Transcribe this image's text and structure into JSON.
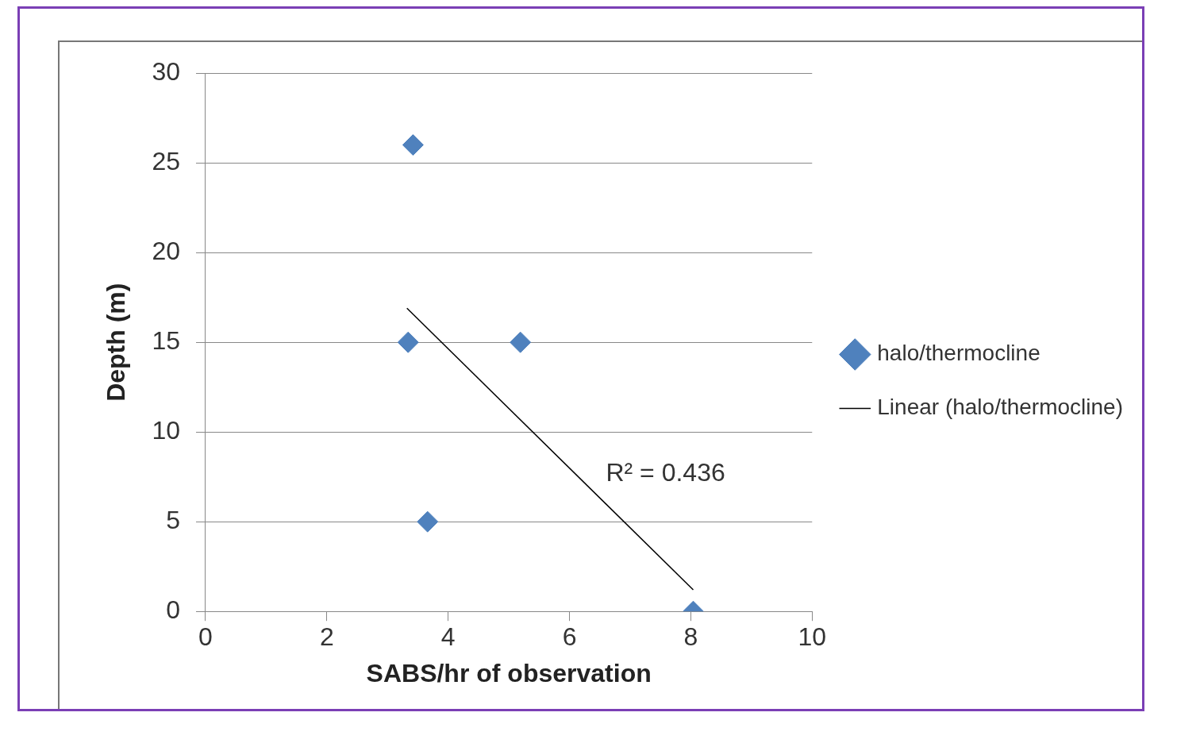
{
  "chart_data": {
    "type": "scatter",
    "xlabel": "SABS/hr of observation",
    "ylabel": "Depth (m)",
    "series": [
      {
        "name": "halo/thermocline",
        "color": "#4f81bd",
        "x": [
          3.42,
          3.34,
          5.19,
          3.66,
          8.04
        ],
        "values": [
          26,
          15,
          15,
          5,
          0
        ],
        "marker": "diamond"
      },
      {
        "name": "Linear (halo/thermocline)",
        "type": "line",
        "color": "#000000",
        "x": [
          3.32,
          8.04
        ],
        "values": [
          16.9,
          1.2
        ],
        "marker": "none"
      }
    ],
    "annotations": [
      "R² = 0.436"
    ],
    "xlim": [
      0,
      10
    ],
    "xticks": [
      0,
      2,
      4,
      6,
      8,
      10
    ],
    "ylim": [
      0,
      30
    ],
    "yticks": [
      0,
      5,
      10,
      15,
      20,
      25,
      30
    ],
    "grid": "y",
    "legend": "right"
  }
}
